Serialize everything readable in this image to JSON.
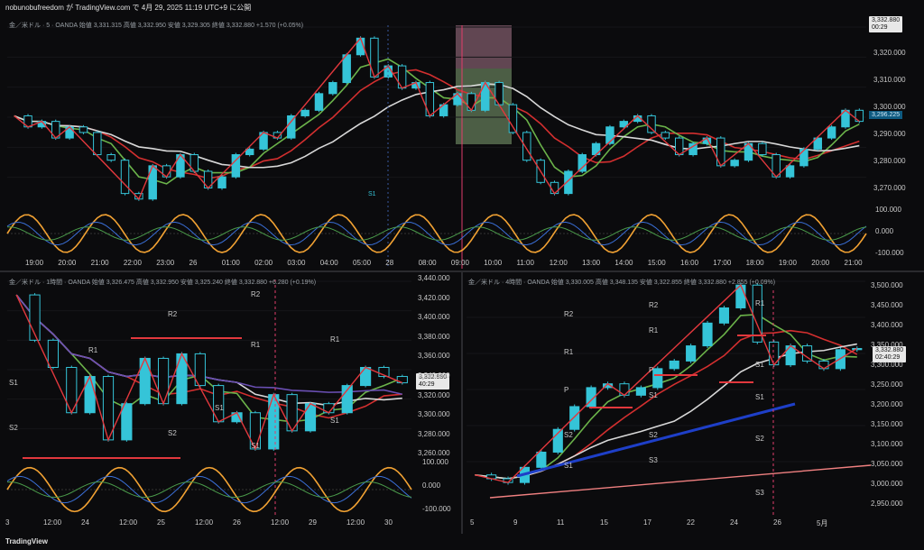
{
  "header": {
    "publisher": "nobunobufreedom が TradingView.com で 4月 29, 2025 11:19 UTC+9 に公開"
  },
  "footer": {
    "brand": "TradingView"
  },
  "colors": {
    "background": "#0b0b0d",
    "candle": "#35c4d8",
    "zigzag": "#e2383d",
    "ma_red": "#d32f2f",
    "ma_green": "#6bb34a",
    "ma_white": "#d8d8d8",
    "ma_purple": "#6a4fb3",
    "ma_blue": "#1e3fc8",
    "osc_orange": "#f2a233",
    "osc_blue": "#3a6fd8",
    "osc_green": "#4a9a4a",
    "session_line": "#e23d6a"
  },
  "panels": {
    "top": {
      "title": "金／米ドル · 5 · OANDA  始値 3,331.315  高値 3,332.950  安値 3,329.305  終値 3,332.880  +1.570 (+0.05%)",
      "price_tag": "3,332.880",
      "time_left": "00:29",
      "ma_tag": "3,296.225",
      "level_label": "S1",
      "x_ticks": [
        "19:00",
        "20:00",
        "21:00",
        "22:00",
        "23:00",
        "26",
        "01:00",
        "02:00",
        "03:00",
        "04:00",
        "05:00",
        "28",
        "08:00",
        "09:00",
        "10:00",
        "11:00",
        "12:00",
        "13:00",
        "14:00",
        "15:00",
        "16:00",
        "17:00",
        "18:00",
        "19:00",
        "20:00",
        "21:00"
      ],
      "y_ticks": [
        "3,320.000",
        "3,310.000",
        "3,300.000",
        "3,290.000",
        "3,280.000",
        "3,270.000"
      ],
      "osc_ticks": [
        "100.000",
        "0.000",
        "-100.000"
      ]
    },
    "left": {
      "title": "金／米ドル · 1時間 · OANDA  始値 3,326.475  高値 3,332.950  安値 3,325.240  終値 3,332.880  +6.280 (+0.19%)",
      "price_tag": "3,332.880",
      "time_left": "40:29",
      "pivots": [
        "R2",
        "R2",
        "R1",
        "R1",
        "R1",
        "S1",
        "S2",
        "S2",
        "S1",
        "S1",
        "S1"
      ],
      "x_ticks": [
        "3",
        "12:00",
        "24",
        "12:00",
        "25",
        "12:00",
        "26",
        "12:00",
        "29",
        "12:00",
        "30"
      ],
      "y_ticks": [
        "3,440.000",
        "3,420.000",
        "3,400.000",
        "3,380.000",
        "3,360.000",
        "3,340.000",
        "3,320.000",
        "3,300.000",
        "3,280.000",
        "3,260.000"
      ],
      "osc_ticks": [
        "100.000",
        "0.000",
        "-100.000"
      ]
    },
    "right": {
      "title": "金／米ドル · 4時間 · OANDA  始値 3,330.005  高値 3,348.135  安値 3,322.855  終値 3,332.880  +2.855 (+0.09%)",
      "price_tag": "3,332.880",
      "time_left": "02:40:29",
      "pivots": [
        "R2",
        "R1",
        "R2",
        "R1",
        "R1",
        "P",
        "P",
        "S1",
        "S1",
        "S2",
        "S2",
        "S1",
        "S3",
        "S3",
        "S2",
        "S1"
      ],
      "x_ticks": [
        "5",
        "9",
        "11",
        "15",
        "17",
        "22",
        "24",
        "26",
        "5月"
      ],
      "y_ticks": [
        "3,500.000",
        "3,450.000",
        "3,400.000",
        "3,350.000",
        "3,300.000",
        "3,250.000",
        "3,200.000",
        "3,150.000",
        "3,100.000",
        "3,050.000",
        "3,000.000",
        "2,950.000"
      ]
    }
  },
  "chart_data": [
    {
      "type": "line",
      "title": "金／米ドル · 5 · OANDA",
      "x_label": "",
      "y_label": "",
      "ylim": [
        3265,
        3330
      ],
      "series": [
        {
          "name": "",
          "values": [
            3298,
            3294,
            3296,
            3290,
            3294,
            3292,
            3284,
            3282,
            3270,
            3268,
            3280,
            3276,
            3284,
            3278,
            3272,
            3276,
            3284,
            3286,
            3292,
            3290,
            3298,
            3300,
            3306,
            3310,
            3320,
            3326,
            3312,
            3316,
            3308,
            3310,
            3298,
            3302,
            3306,
            3300,
            3310,
            3302,
            3292,
            3282,
            3274,
            3270,
            3278,
            3284,
            3288,
            3294,
            3296,
            3298,
            3292,
            3290,
            3284,
            3288,
            3290,
            3280,
            3282,
            3288,
            3284,
            3276,
            3280,
            3286,
            3290,
            3294,
            3300,
            3296
          ]
        }
      ]
    },
    {
      "type": "line",
      "title": "金／米ドル · 1時間 · OANDA",
      "x_label": "",
      "y_label": "",
      "ylim": [
        3250,
        3445
      ],
      "series": [
        {
          "name": "",
          "values": [
            3430,
            3380,
            3350,
            3300,
            3340,
            3270,
            3310,
            3360,
            3310,
            3365,
            3330,
            3290,
            3300,
            3260,
            3320,
            3280,
            3310,
            3300,
            3330,
            3350,
            3340,
            3333
          ]
        }
      ]
    },
    {
      "type": "line",
      "title": "金／米ドル · 4時間 · OANDA",
      "x_label": "",
      "y_label": "",
      "ylim": [
        2940,
        3510
      ],
      "series": [
        {
          "name": "",
          "values": [
            3000,
            2990,
            2980,
            3020,
            3060,
            3120,
            3180,
            3230,
            3240,
            3210,
            3230,
            3280,
            3300,
            3340,
            3400,
            3440,
            3500,
            3350,
            3290,
            3340,
            3300,
            3280,
            3330,
            3333
          ]
        }
      ]
    }
  ]
}
